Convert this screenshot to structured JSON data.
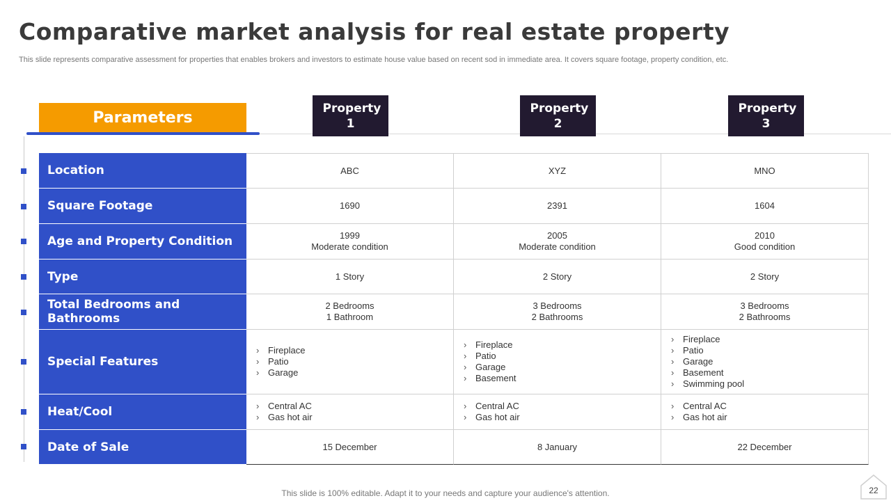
{
  "title": "Comparative market analysis for real estate property",
  "subtitle": "This slide represents comparative assessment for properties that enables brokers and investors to estimate house value based on recent sod in immediate area. It covers square footage, property condition, etc.",
  "table": {
    "param_header": "Parameters",
    "property_headers": [
      "Property 1",
      "Property 2",
      "Property 3"
    ],
    "rows": [
      {
        "param": "Location",
        "values": [
          "ABC",
          "XYZ",
          "MNO"
        ]
      },
      {
        "param": "Square Footage",
        "values": [
          "1690",
          "2391",
          "1604"
        ]
      },
      {
        "param": "Age and Property Condition",
        "values": [
          [
            "1999",
            "Moderate  condition"
          ],
          [
            "2005",
            "Moderate  condition"
          ],
          [
            "2010",
            "Good condition"
          ]
        ]
      },
      {
        "param": "Type",
        "values": [
          "1 Story",
          "2 Story",
          "2 Story"
        ]
      },
      {
        "param": "Total Bedrooms and Bathrooms",
        "values": [
          [
            "2 Bedrooms",
            "1 Bathroom"
          ],
          [
            "3 Bedrooms",
            "2 Bathrooms"
          ],
          [
            "3 Bedrooms",
            "2 Bathrooms"
          ]
        ]
      },
      {
        "param": "Special Features",
        "values": [
          [
            "Fireplace",
            "Patio",
            "Garage"
          ],
          [
            "Fireplace",
            "Patio",
            "Garage",
            "Basement"
          ],
          [
            "Fireplace",
            "Patio",
            "Garage",
            "Basement",
            "Swimming pool"
          ]
        ]
      },
      {
        "param": "Heat/Cool",
        "values": [
          [
            "Central AC",
            "Gas hot air"
          ],
          [
            "Central AC",
            "Gas hot air"
          ],
          [
            "Central AC",
            "Gas hot air"
          ]
        ]
      },
      {
        "param": "Date of Sale",
        "values": [
          "15 December",
          "8 January",
          "22 December"
        ]
      }
    ]
  },
  "footer": "This slide is 100% editable. Adapt it to your needs and capture your audience's attention.",
  "page_number": "22",
  "colors": {
    "accent_blue": "#3050c8",
    "accent_orange": "#f59b00",
    "header_dark": "#221a30"
  }
}
